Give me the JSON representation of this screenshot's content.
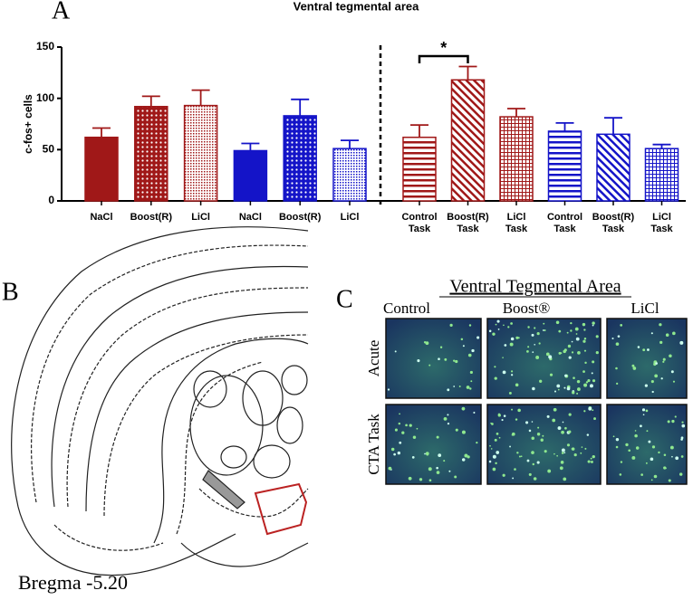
{
  "chart_data": {
    "type": "bar",
    "panel_label": "A",
    "title": "Ventral tegmental area",
    "ylabel": "c-fos+ cells",
    "categories": [
      "NaCl",
      "Boost(R)",
      "LiCl",
      "NaCl",
      "Boost(R)",
      "LiCl",
      "Control Task",
      "Boost(R) Task",
      "LiCl Task",
      "Control Task",
      "Boost(R) Task",
      "LiCl Task"
    ],
    "values": [
      62,
      92,
      93,
      49,
      83,
      51,
      62,
      118,
      82,
      68,
      65,
      51
    ],
    "errors": [
      9,
      10,
      15,
      7,
      16,
      8,
      12,
      13,
      8,
      8,
      16,
      4
    ],
    "colors": [
      "#a01818",
      "#a01818",
      "#a01818",
      "#1414c8",
      "#1414c8",
      "#1414c8",
      "#a01818",
      "#a01818",
      "#a01818",
      "#1414c8",
      "#1414c8",
      "#1414c8"
    ],
    "patterns": [
      "solid",
      "dots",
      "fine-dots",
      "solid",
      "dots",
      "fine-dots",
      "hlines",
      "diagonal",
      "grid",
      "hlines",
      "diagonal",
      "grid"
    ],
    "significance": {
      "label": "*",
      "between": [
        6,
        7
      ]
    },
    "ylim": [
      0,
      150
    ],
    "yticks": [
      0,
      50,
      100,
      150
    ]
  },
  "panel_b": {
    "label": "B",
    "caption": "Bregma -5.20"
  },
  "panel_c": {
    "label": "C",
    "title": "Ventral Tegmental Area",
    "columns": [
      "Control",
      "Boost®",
      "LiCl"
    ],
    "rows": [
      "Acute",
      "CTA Task"
    ]
  }
}
